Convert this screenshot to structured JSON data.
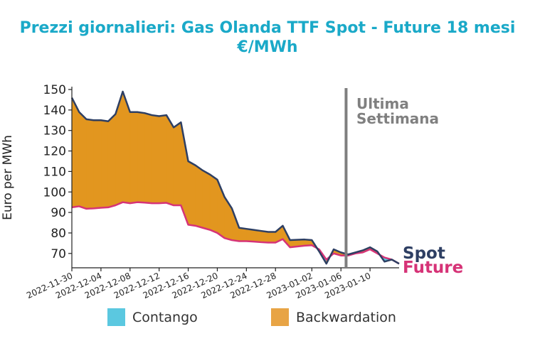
{
  "chart_data": {
    "type": "area",
    "title": "Prezzi giornalieri: Gas Olanda TTF Spot - Future 18 mesi",
    "subtitle": "€/MWh",
    "ylabel": "Euro per MWh",
    "xlabel": "",
    "ylim": [
      63,
      150
    ],
    "yticks": [
      70,
      80,
      90,
      100,
      110,
      120,
      130,
      140,
      150
    ],
    "xlim": [
      "2022-11-30",
      "2023-01-14"
    ],
    "xticks": [
      "2022-11-30",
      "2022-12-04",
      "2022-12-08",
      "2022-12-12",
      "2022-12-16",
      "2022-12-20",
      "2022-12-24",
      "2022-12-28",
      "2023-01-02",
      "2023-01-06",
      "2023-01-10"
    ],
    "marker": {
      "date": "2023-01-07",
      "label_line1": "Ultima",
      "label_line2": "Settimana"
    },
    "series": [
      {
        "name": "Spot",
        "color": "#2e3f63",
        "points": [
          [
            "2022-11-30",
            146
          ],
          [
            "2022-12-01",
            139
          ],
          [
            "2022-12-02",
            135.5
          ],
          [
            "2022-12-03",
            135
          ],
          [
            "2022-12-04",
            135
          ],
          [
            "2022-12-05",
            134.5
          ],
          [
            "2022-12-06",
            138
          ],
          [
            "2022-12-07",
            149
          ],
          [
            "2022-12-08",
            139
          ],
          [
            "2022-12-09",
            139
          ],
          [
            "2022-12-10",
            138.5
          ],
          [
            "2022-12-11",
            137.5
          ],
          [
            "2022-12-12",
            137
          ],
          [
            "2022-12-13",
            137.5
          ],
          [
            "2022-12-14",
            131.5
          ],
          [
            "2022-12-15",
            134
          ],
          [
            "2022-12-16",
            115
          ],
          [
            "2022-12-17",
            113
          ],
          [
            "2022-12-18",
            110.5
          ],
          [
            "2022-12-19",
            108.5
          ],
          [
            "2022-12-20",
            106
          ],
          [
            "2022-12-21",
            97.5
          ],
          [
            "2022-12-22",
            92
          ],
          [
            "2022-12-23",
            82.5
          ],
          [
            "2022-12-24",
            82
          ],
          [
            "2022-12-25",
            81.5
          ],
          [
            "2022-12-26",
            81
          ],
          [
            "2022-12-27",
            80.5
          ],
          [
            "2022-12-28",
            80.5
          ],
          [
            "2022-12-29",
            83.5
          ],
          [
            "2022-12-30",
            76.5
          ],
          [
            "2023-01-01",
            76.8
          ],
          [
            "2023-01-02",
            76.5
          ],
          [
            "2023-01-03",
            71
          ],
          [
            "2023-01-04",
            65
          ],
          [
            "2023-01-05",
            72
          ],
          [
            "2023-01-06",
            70.5
          ],
          [
            "2023-01-07",
            69.5
          ],
          [
            "2023-01-08",
            70.5
          ],
          [
            "2023-01-09",
            71.5
          ],
          [
            "2023-01-10",
            73
          ],
          [
            "2023-01-11",
            71
          ],
          [
            "2023-01-12",
            66
          ],
          [
            "2023-01-13",
            67
          ],
          [
            "2023-01-14",
            65
          ]
        ]
      },
      {
        "name": "Future",
        "color": "#d63377",
        "points": [
          [
            "2022-11-30",
            92.5
          ],
          [
            "2022-12-01",
            93
          ],
          [
            "2022-12-02",
            91.8
          ],
          [
            "2022-12-03",
            92
          ],
          [
            "2022-12-04",
            92.3
          ],
          [
            "2022-12-05",
            92.5
          ],
          [
            "2022-12-06",
            93.5
          ],
          [
            "2022-12-07",
            95
          ],
          [
            "2022-12-08",
            94.5
          ],
          [
            "2022-12-09",
            95
          ],
          [
            "2022-12-10",
            94.8
          ],
          [
            "2022-12-11",
            94.5
          ],
          [
            "2022-12-12",
            94.5
          ],
          [
            "2022-12-13",
            94.7
          ],
          [
            "2022-12-14",
            93.5
          ],
          [
            "2022-12-15",
            93.5
          ],
          [
            "2022-12-16",
            84
          ],
          [
            "2022-12-17",
            83.5
          ],
          [
            "2022-12-18",
            82.5
          ],
          [
            "2022-12-19",
            81.5
          ],
          [
            "2022-12-20",
            80
          ],
          [
            "2022-12-21",
            77.5
          ],
          [
            "2022-12-22",
            76.5
          ],
          [
            "2022-12-23",
            76
          ],
          [
            "2022-12-24",
            76
          ],
          [
            "2022-12-25",
            75.8
          ],
          [
            "2022-12-26",
            75.5
          ],
          [
            "2022-12-27",
            75.3
          ],
          [
            "2022-12-28",
            75.3
          ],
          [
            "2022-12-29",
            77
          ],
          [
            "2022-12-30",
            73
          ],
          [
            "2023-01-01",
            73.8
          ],
          [
            "2023-01-02",
            74
          ],
          [
            "2023-01-03",
            72
          ],
          [
            "2023-01-04",
            67
          ],
          [
            "2023-01-05",
            70
          ],
          [
            "2023-01-06",
            69
          ],
          [
            "2023-01-07",
            69
          ],
          [
            "2023-01-08",
            70
          ],
          [
            "2023-01-09",
            70.5
          ],
          [
            "2023-01-10",
            72
          ],
          [
            "2023-01-11",
            70
          ],
          [
            "2023-01-12",
            68
          ],
          [
            "2023-01-13",
            67
          ],
          [
            "2023-01-14",
            65
          ]
        ]
      }
    ],
    "legend": {
      "placement": "bottom",
      "items": [
        {
          "label": "Contango",
          "color": "#5bc8e0"
        },
        {
          "label": "Backwardation",
          "color": "#e8a445"
        }
      ]
    },
    "fill_colors": {
      "backwardation": "#e2961f",
      "contango": "#5bc8e0"
    }
  }
}
